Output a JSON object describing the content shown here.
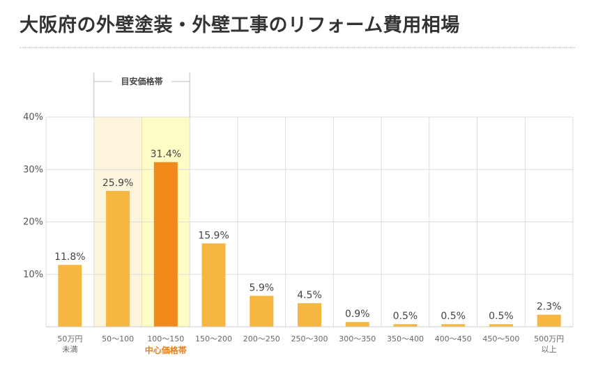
{
  "title": "大阪府の外壁塗装・外壁工事のリフォーム費用相場",
  "chart_data": {
    "type": "bar",
    "categories": [
      [
        "50万円",
        "未満"
      ],
      [
        "50〜100"
      ],
      [
        "100〜150"
      ],
      [
        "150〜200"
      ],
      [
        "200〜250"
      ],
      [
        "250〜300"
      ],
      [
        "300〜350"
      ],
      [
        "350〜400"
      ],
      [
        "400〜450"
      ],
      [
        "450〜500"
      ],
      [
        "500万円",
        "以上"
      ]
    ],
    "values": [
      11.8,
      25.9,
      31.4,
      15.9,
      5.9,
      4.5,
      0.9,
      0.5,
      0.5,
      0.5,
      2.3
    ],
    "value_labels": [
      "11.8%",
      "25.9%",
      "31.4%",
      "15.9%",
      "5.9%",
      "4.5%",
      "0.9%",
      "0.5%",
      "0.5%",
      "0.5%",
      "2.3%"
    ],
    "ylim": [
      0,
      40
    ],
    "yticks": [
      "",
      "10%",
      "20%",
      "30%",
      "40%"
    ],
    "grid": true,
    "highlight_index": 2,
    "estimate_range_label": "目安価格帯",
    "estimate_range_indices": [
      1,
      2
    ],
    "center_range_label": "中心価格帯",
    "colors": {
      "bar": "#f5b73f",
      "highlight_bar": "#f28a1b",
      "range_bg": "#fdf4dc",
      "center_bg": "#fdfbc6",
      "grid": "#dddddd",
      "center_text": "#e8801a"
    }
  }
}
